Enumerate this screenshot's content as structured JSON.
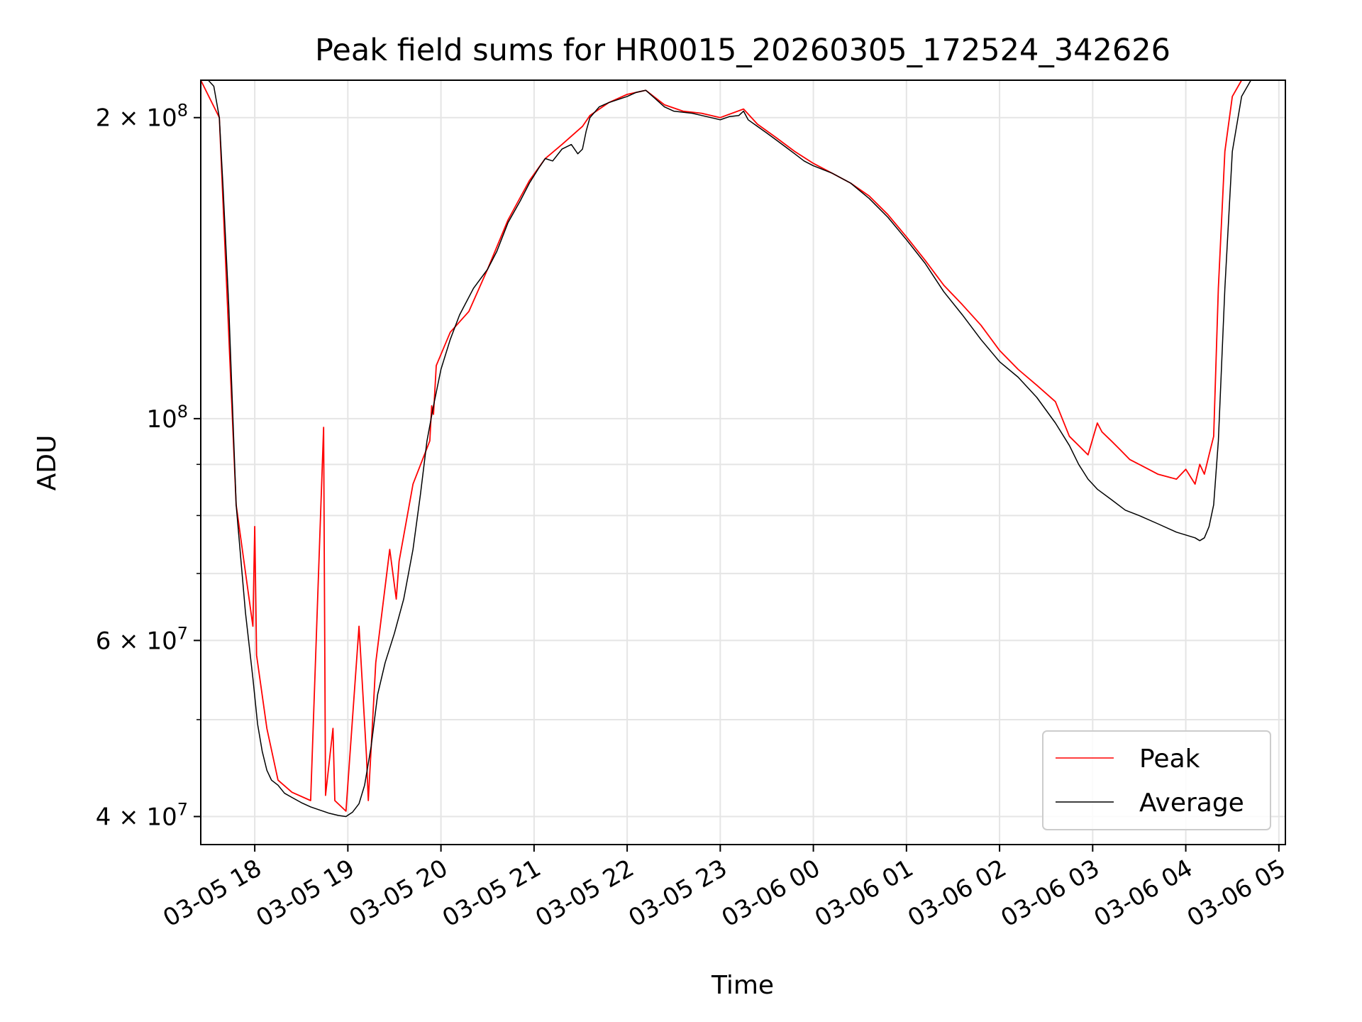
{
  "chart_data": {
    "type": "line",
    "title": "Peak field sums for HR0015_20260305_172524_342626",
    "xlabel": "Time",
    "ylabel": "ADU",
    "yscale": "log",
    "grid": true,
    "legend_position": "lower-right",
    "xlim": [
      17.42,
      29.07
    ],
    "ylim": [
      37500000,
      218000000
    ],
    "x_unit": "hours since 2026-03-05 00:00",
    "x_ticks": [
      {
        "value": 18,
        "label": "03-05 18"
      },
      {
        "value": 19,
        "label": "03-05 19"
      },
      {
        "value": 20,
        "label": "03-05 20"
      },
      {
        "value": 21,
        "label": "03-05 21"
      },
      {
        "value": 22,
        "label": "03-05 22"
      },
      {
        "value": 23,
        "label": "03-05 23"
      },
      {
        "value": 24,
        "label": "03-06 00"
      },
      {
        "value": 25,
        "label": "03-06 01"
      },
      {
        "value": 26,
        "label": "03-06 02"
      },
      {
        "value": 27,
        "label": "03-06 03"
      },
      {
        "value": 28,
        "label": "03-06 04"
      },
      {
        "value": 29,
        "label": "03-06 05"
      }
    ],
    "y_major_ticks": [
      {
        "value": 40000000,
        "base": "4 × 10",
        "exp": "7"
      },
      {
        "value": 60000000,
        "base": "6 × 10",
        "exp": "7"
      },
      {
        "value": 100000000,
        "base": "10",
        "exp": "8"
      },
      {
        "value": 200000000,
        "base": "2 × 10",
        "exp": "8"
      }
    ],
    "y_minor_grid": [
      50000000,
      70000000,
      80000000,
      90000000
    ],
    "series": [
      {
        "name": "Average",
        "color": "#000000",
        "x": [
          17.42,
          17.5,
          17.56,
          17.62,
          17.66,
          17.72,
          17.8,
          17.9,
          17.98,
          18.03,
          18.08,
          18.13,
          18.18,
          18.25,
          18.32,
          18.4,
          18.5,
          18.6,
          18.7,
          18.8,
          18.9,
          18.98,
          19.05,
          19.12,
          19.18,
          19.25,
          19.32,
          19.4,
          19.5,
          19.6,
          19.7,
          19.78,
          19.85,
          19.92,
          20.0,
          20.1,
          20.2,
          20.35,
          20.5,
          20.6,
          20.72,
          20.85,
          20.95,
          21.05,
          21.12,
          21.2,
          21.3,
          21.4,
          21.47,
          21.52,
          21.56,
          21.6,
          21.7,
          21.8,
          22.0,
          22.1,
          22.2,
          22.3,
          22.4,
          22.5,
          22.6,
          22.7,
          22.8,
          22.9,
          23.0,
          23.1,
          23.2,
          23.25,
          23.3,
          23.4,
          23.5,
          23.6,
          23.7,
          23.8,
          23.9,
          24.0,
          24.2,
          24.4,
          24.6,
          24.8,
          25.0,
          25.2,
          25.4,
          25.6,
          25.8,
          26.0,
          26.2,
          26.4,
          26.6,
          26.75,
          26.85,
          26.95,
          27.05,
          27.2,
          27.35,
          27.5,
          27.7,
          27.9,
          28.0,
          28.1,
          28.15,
          28.2,
          28.25,
          28.3,
          28.35,
          28.42,
          28.5,
          28.6,
          28.7,
          28.8,
          28.9,
          29.0
        ],
        "values": [
          218000000,
          218000000,
          215000000,
          200000000,
          170000000,
          130000000,
          82000000,
          64000000,
          55000000,
          49500000,
          46500000,
          44500000,
          43500000,
          43000000,
          42200000,
          41800000,
          41300000,
          40900000,
          40600000,
          40300000,
          40100000,
          40000000,
          40400000,
          41200000,
          43000000,
          47000000,
          53000000,
          57000000,
          61000000,
          66000000,
          74000000,
          84000000,
          95000000,
          103000000,
          112000000,
          120000000,
          127000000,
          135000000,
          141000000,
          147000000,
          157000000,
          165000000,
          172000000,
          178000000,
          182000000,
          181000000,
          186000000,
          188000000,
          184000000,
          186000000,
          194000000,
          200000000,
          205000000,
          207000000,
          210000000,
          212000000,
          213000000,
          209000000,
          205000000,
          203000000,
          202500000,
          202000000,
          201000000,
          200000000,
          199000000,
          200500000,
          201000000,
          203000000,
          199000000,
          196000000,
          193000000,
          190000000,
          187000000,
          184000000,
          181000000,
          179000000,
          176000000,
          172000000,
          166000000,
          159000000,
          151000000,
          143000000,
          134000000,
          127000000,
          120000000,
          114000000,
          110000000,
          105000000,
          99000000,
          94000000,
          90000000,
          87000000,
          85000000,
          83000000,
          81000000,
          80000000,
          78500000,
          77000000,
          76500000,
          76000000,
          75500000,
          76000000,
          78000000,
          82000000,
          95000000,
          135000000,
          185000000,
          210000000,
          218000000,
          218000000,
          218000000,
          218000000
        ]
      },
      {
        "name": "Peak",
        "color": "#ff0000",
        "x": [
          17.42,
          17.62,
          17.8,
          17.98,
          18.0,
          18.02,
          18.13,
          18.25,
          18.4,
          18.6,
          18.74,
          18.76,
          18.84,
          18.86,
          18.98,
          19.12,
          19.2,
          19.22,
          19.3,
          19.45,
          19.52,
          19.55,
          19.7,
          19.88,
          19.9,
          19.92,
          19.95,
          20.1,
          20.3,
          20.5,
          20.72,
          20.95,
          21.12,
          21.3,
          21.52,
          21.6,
          21.8,
          22.0,
          22.2,
          22.4,
          22.6,
          22.8,
          23.0,
          23.25,
          23.4,
          23.6,
          23.8,
          24.0,
          24.2,
          24.4,
          24.6,
          24.8,
          25.0,
          25.2,
          25.4,
          25.6,
          25.8,
          26.0,
          26.2,
          26.4,
          26.6,
          26.75,
          26.95,
          27.05,
          27.1,
          27.2,
          27.3,
          27.4,
          27.5,
          27.6,
          27.7,
          27.8,
          27.9,
          28.0,
          28.1,
          28.15,
          28.2,
          28.25,
          28.3,
          28.35,
          28.42,
          28.5,
          28.6,
          28.8,
          29.0
        ],
        "values": [
          218000000,
          200000000,
          82000000,
          62000000,
          78000000,
          58000000,
          49000000,
          43500000,
          42300000,
          41500000,
          98000000,
          42000000,
          49000000,
          41500000,
          40500000,
          62000000,
          46000000,
          41500000,
          57000000,
          74000000,
          66000000,
          72000000,
          86000000,
          95000000,
          103000000,
          101000000,
          113000000,
          122000000,
          128000000,
          141000000,
          158000000,
          173000000,
          182000000,
          188000000,
          196000000,
          201000000,
          207000000,
          211000000,
          213000000,
          206000000,
          203000000,
          202000000,
          200000000,
          204000000,
          197000000,
          191000000,
          185000000,
          180000000,
          176000000,
          172000000,
          167000000,
          160000000,
          152000000,
          144000000,
          136000000,
          130000000,
          124000000,
          117000000,
          112000000,
          108000000,
          104000000,
          96000000,
          92000000,
          99000000,
          97000000,
          95000000,
          93000000,
          91000000,
          90000000,
          89000000,
          88000000,
          87500000,
          87000000,
          89000000,
          86000000,
          90000000,
          88000000,
          92000000,
          96000000,
          135000000,
          185000000,
          210000000,
          218000000,
          218000000,
          218000000
        ]
      }
    ],
    "legend": [
      {
        "label": "Peak",
        "color": "#ff0000"
      },
      {
        "label": "Average",
        "color": "#000000"
      }
    ]
  }
}
